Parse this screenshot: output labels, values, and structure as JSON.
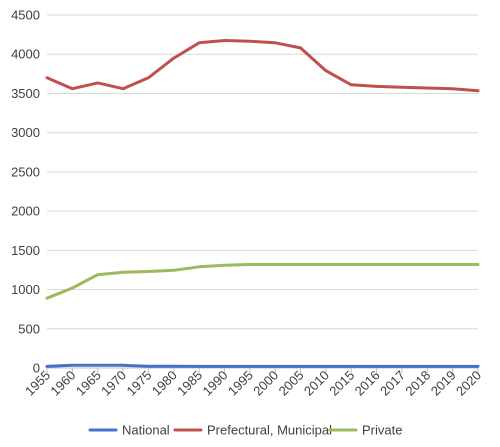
{
  "chart_data": {
    "type": "line",
    "categories": [
      "1955",
      "1960",
      "1965",
      "1970",
      "1975",
      "1980",
      "1985",
      "1990",
      "1995",
      "2000",
      "2005",
      "2010",
      "2015",
      "2016",
      "2017",
      "2018",
      "2019",
      "2020"
    ],
    "yticks": [
      "0",
      "500",
      "1000",
      "1500",
      "2000",
      "2500",
      "3000",
      "3500",
      "4000",
      "4500"
    ],
    "ylim": [
      0,
      4500
    ],
    "grid": true,
    "legend_position": "bottom",
    "series": [
      {
        "name": "National",
        "color": "#4472C4",
        "values": [
          20,
          35,
          35,
          35,
          22,
          22,
          20,
          20,
          20,
          20,
          20,
          20,
          20,
          20,
          20,
          20,
          20,
          20
        ]
      },
      {
        "name": "Prefectural, Municipal",
        "color": "#C0504D",
        "values": [
          3700,
          3560,
          3635,
          3560,
          3700,
          3950,
          4145,
          4175,
          4165,
          4145,
          4080,
          3790,
          3610,
          3590,
          3580,
          3570,
          3560,
          3535
        ]
      },
      {
        "name": "Private",
        "color": "#9BBB59",
        "values": [
          890,
          1020,
          1190,
          1220,
          1230,
          1245,
          1290,
          1310,
          1320,
          1320,
          1320,
          1320,
          1320,
          1320,
          1320,
          1320,
          1320,
          1320
        ]
      }
    ]
  }
}
